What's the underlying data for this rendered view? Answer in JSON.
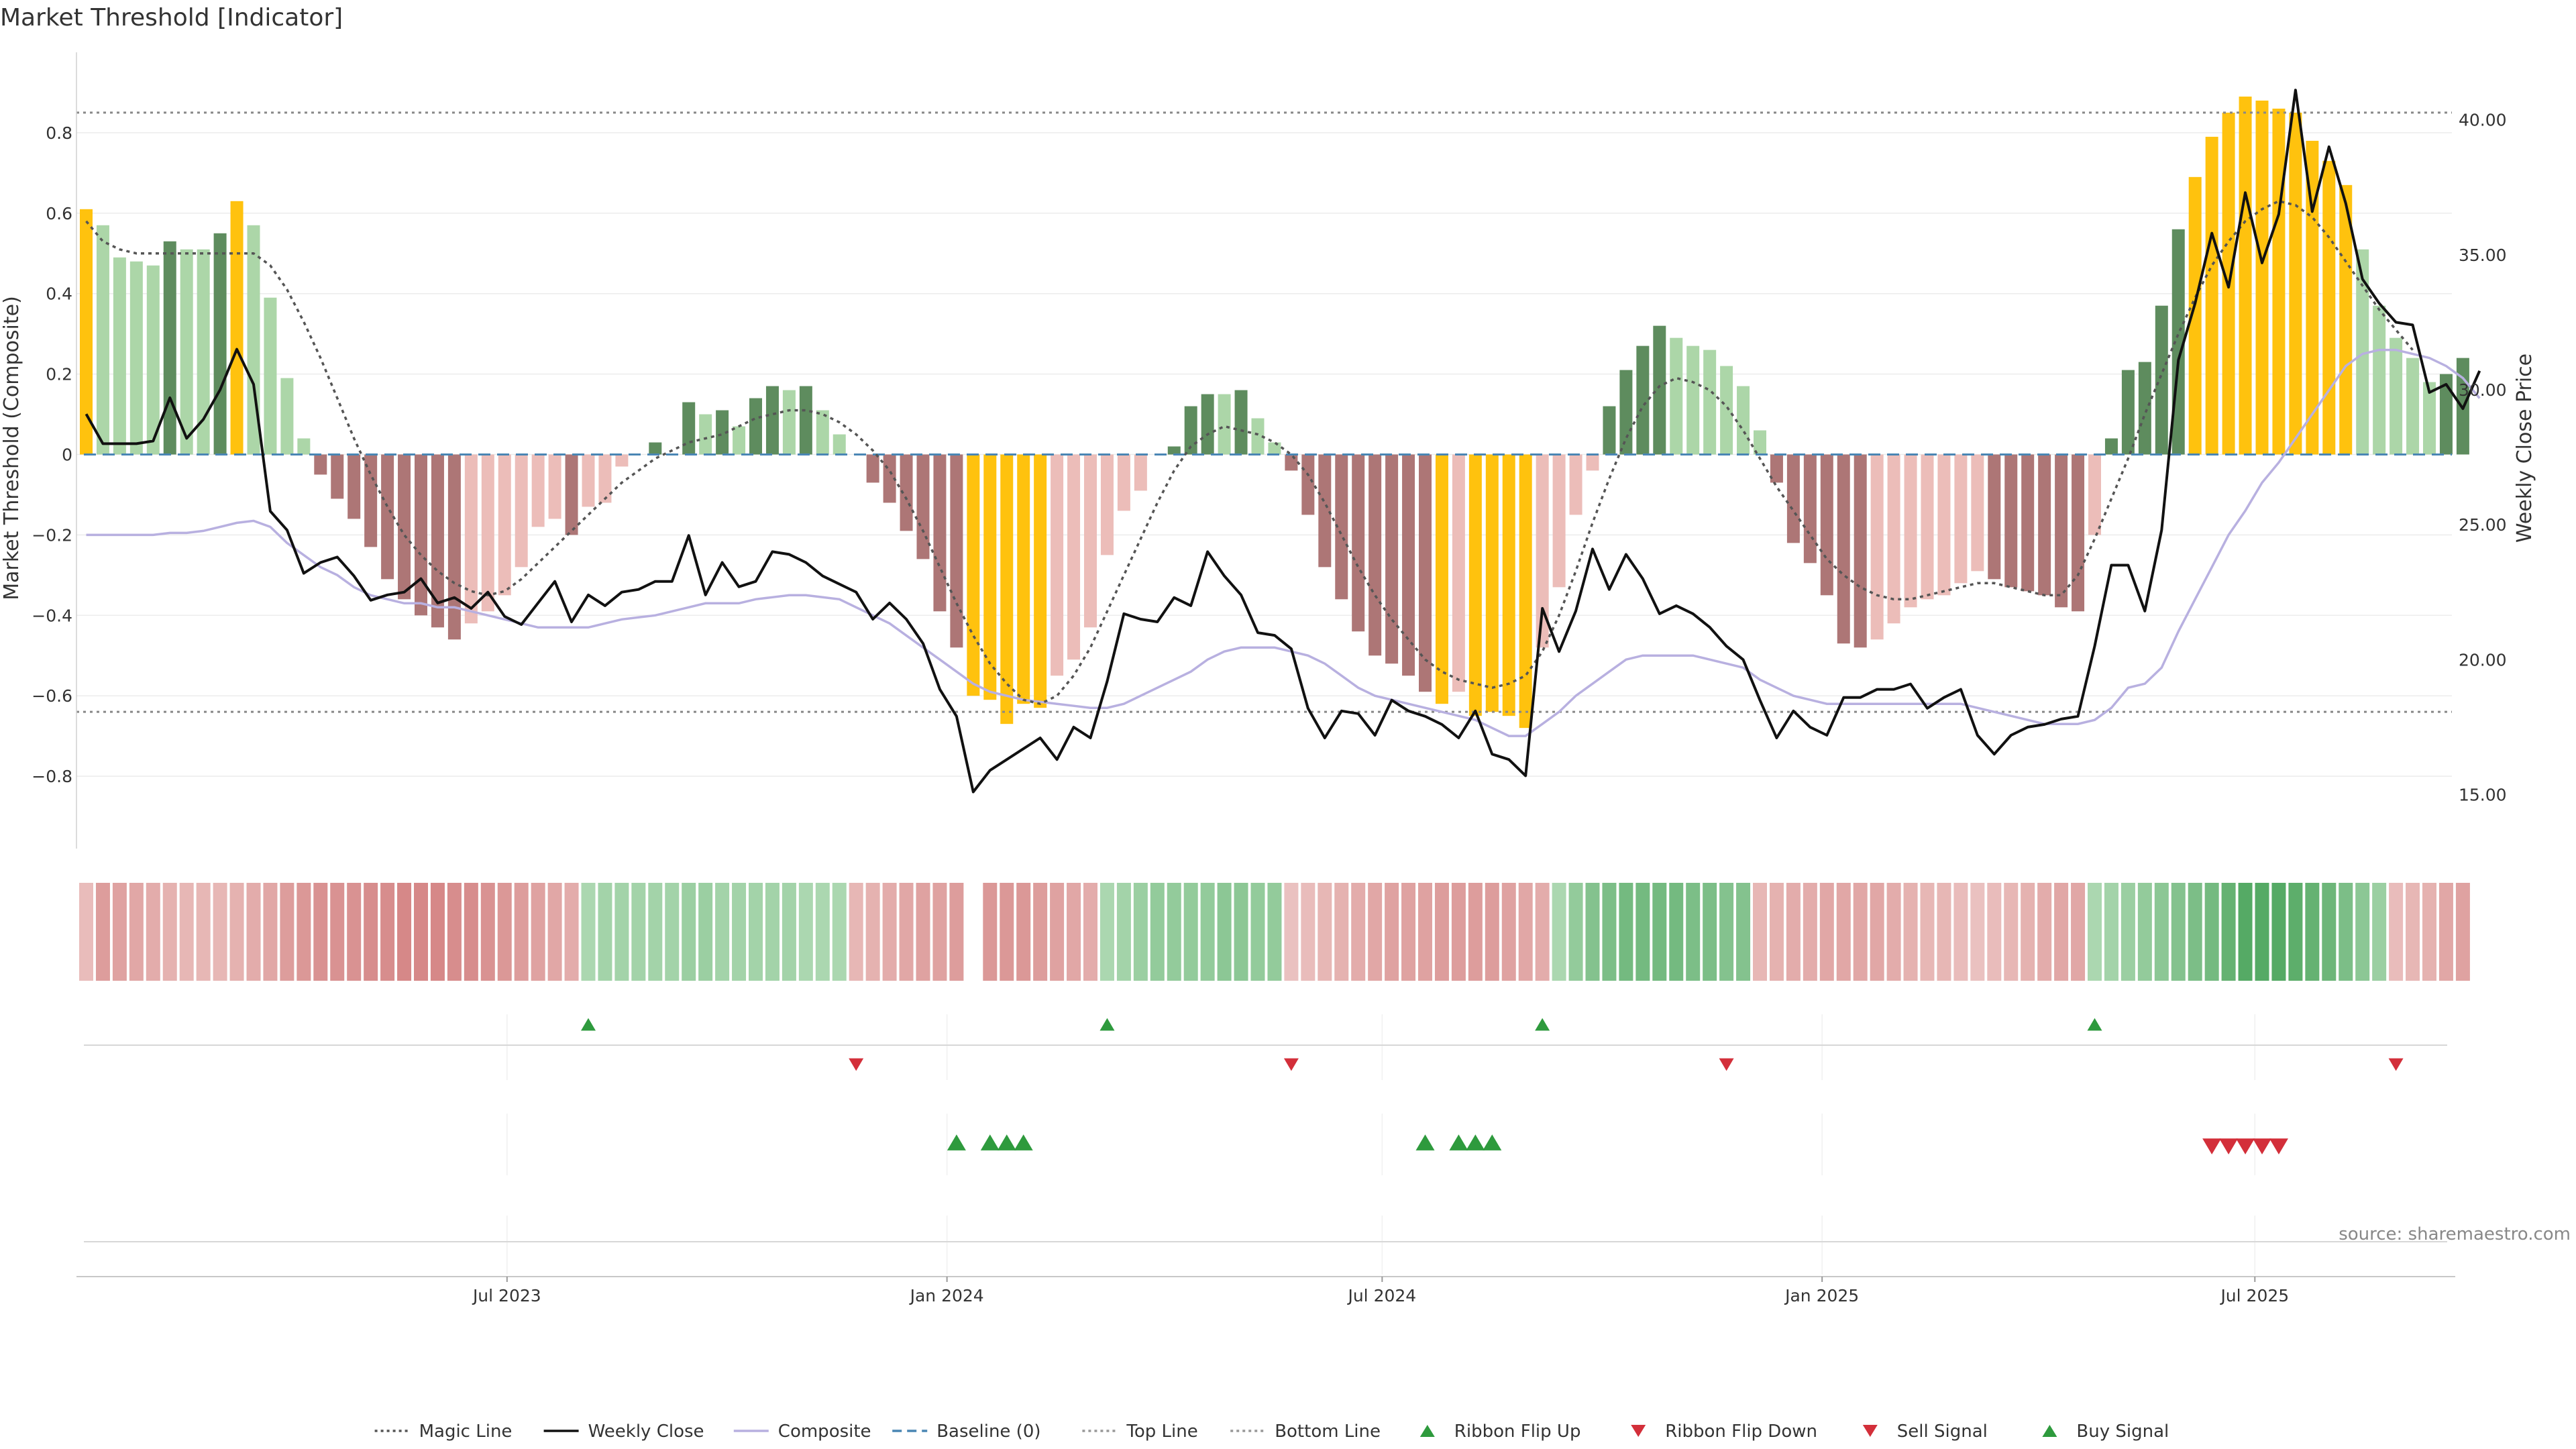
{
  "title": "Market Threshold [Indicator]",
  "source": "source: sharemaestro.com",
  "chart_data": {
    "type": "bar",
    "title": "Market Threshold [Indicator]",
    "ylabel": "Market Threshold (Composite)",
    "y2label": "Weekly Close Price",
    "ylim": [
      -0.98,
      1.0
    ],
    "y2lim": [
      13.0,
      42.5
    ],
    "y_ticks": [
      -0.8,
      -0.6,
      -0.4,
      -0.2,
      0,
      0.2,
      0.4,
      0.6,
      0.8
    ],
    "y_tick_labels": [
      "−0.8",
      "−0.6",
      "−0.4",
      "−0.2",
      "0",
      "0.2",
      "0.4",
      "0.6",
      "0.8"
    ],
    "y2_ticks": [
      15,
      20,
      25,
      30,
      35,
      40
    ],
    "y2_tick_labels": [
      "15.00",
      "20.00",
      "25.00",
      "30.00",
      "35.00",
      "40.00"
    ],
    "x_start": "2023-01-06",
    "x_tick_dates": [
      "2023-07-01",
      "2024-01-01",
      "2024-07-01",
      "2025-01-01",
      "2025-07-01"
    ],
    "x_tick_labels": [
      "Jul 2023",
      "Jan 2024",
      "Jul 2024",
      "Jan 2025",
      "Jul 2025"
    ],
    "top_line": 0.85,
    "bottom_line": -0.64,
    "grid": true,
    "legend_position": "bottom-center",
    "colors": {
      "pos_strong": "#5e8c5e",
      "pos_light": "#acd6a8",
      "neg_strong": "#ad7676",
      "neg_light": "#ecbdb9",
      "extreme": "#ffc20e",
      "close": "#111111",
      "composite": "#b8b0e0",
      "magic": "#555555",
      "baseline": "#4a86b4",
      "threshold": "#888888",
      "ribbon_up": "#2e9a3d",
      "ribbon_down": "#d32f3a"
    },
    "series": [
      {
        "name": "Market Threshold",
        "type": "bar",
        "values": [
          0.61,
          0.57,
          0.49,
          0.48,
          0.47,
          0.53,
          0.51,
          0.51,
          0.55,
          0.63,
          0.57,
          0.39,
          0.19,
          0.04,
          -0.05,
          -0.11,
          -0.16,
          -0.23,
          -0.31,
          -0.36,
          -0.4,
          -0.43,
          -0.46,
          -0.42,
          -0.39,
          -0.35,
          -0.28,
          -0.18,
          -0.16,
          -0.2,
          -0.13,
          -0.12,
          -0.03,
          0,
          0.03,
          0,
          0.13,
          0.1,
          0.11,
          0.07,
          0.14,
          0.17,
          0.16,
          0.17,
          0.11,
          0.05,
          0,
          -0.07,
          -0.12,
          -0.19,
          -0.26,
          -0.39,
          -0.48,
          -0.6,
          -0.61,
          -0.67,
          -0.62,
          -0.63,
          -0.55,
          -0.51,
          -0.43,
          -0.25,
          -0.14,
          -0.09,
          0,
          0.02,
          0.12,
          0.15,
          0.15,
          0.16,
          0.09,
          0.03,
          -0.04,
          -0.15,
          -0.28,
          -0.36,
          -0.44,
          -0.5,
          -0.52,
          -0.55,
          -0.59,
          -0.62,
          -0.59,
          -0.65,
          -0.64,
          -0.65,
          -0.68,
          -0.48,
          -0.33,
          -0.15,
          -0.04,
          0.12,
          0.21,
          0.27,
          0.32,
          0.29,
          0.27,
          0.26,
          0.22,
          0.17,
          0.06,
          -0.07,
          -0.22,
          -0.27,
          -0.35,
          -0.47,
          -0.48,
          -0.46,
          -0.42,
          -0.38,
          -0.36,
          -0.35,
          -0.32,
          -0.29,
          -0.31,
          -0.33,
          -0.34,
          -0.35,
          -0.38,
          -0.39,
          -0.2,
          0.04,
          0.21,
          0.23,
          0.37,
          0.56,
          0.69,
          0.79,
          0.85,
          0.89,
          0.88,
          0.86,
          0.85,
          0.78,
          0.73,
          0.67,
          0.51,
          0.37,
          0.29,
          0.24,
          0.18,
          0.2,
          0.24
        ]
      },
      {
        "name": "Weekly Close",
        "type": "line",
        "values": [
          29.1,
          28.0,
          28.0,
          28.0,
          28.1,
          29.7,
          28.2,
          28.9,
          30.0,
          31.5,
          30.2,
          25.5,
          24.8,
          23.2,
          23.6,
          23.8,
          23.1,
          22.2,
          22.4,
          22.5,
          23.0,
          22.1,
          22.3,
          21.9,
          22.5,
          21.6,
          21.3,
          22.1,
          22.9,
          21.4,
          22.4,
          22.0,
          22.5,
          22.6,
          22.9,
          22.9,
          24.6,
          22.4,
          23.6,
          22.7,
          22.9,
          24.0,
          23.9,
          23.6,
          23.1,
          22.8,
          22.5,
          21.5,
          22.1,
          21.5,
          20.6,
          18.9,
          17.9,
          15.1,
          15.9,
          16.3,
          16.7,
          17.1,
          16.3,
          17.5,
          17.1,
          19.2,
          21.7,
          21.5,
          21.4,
          22.3,
          22.0,
          24.0,
          23.1,
          22.4,
          21.0,
          20.9,
          20.4,
          18.2,
          17.1,
          18.1,
          18.0,
          17.2,
          18.5,
          18.1,
          17.9,
          17.6,
          17.1,
          18.1,
          16.5,
          16.3,
          15.7,
          21.9,
          20.3,
          21.8,
          24.1,
          22.6,
          23.9,
          23.0,
          21.7,
          22.0,
          21.7,
          21.2,
          20.5,
          20.0,
          18.5,
          17.1,
          18.1,
          17.5,
          17.2,
          18.6,
          18.6,
          18.9,
          18.9,
          19.1,
          18.2,
          18.6,
          18.9,
          17.2,
          16.5,
          17.2,
          17.5,
          17.6,
          17.8,
          17.9,
          20.5,
          23.5,
          23.5,
          21.8,
          24.8,
          31.1,
          33.2,
          35.8,
          33.8,
          37.3,
          34.7,
          36.5,
          41.1,
          36.6,
          39.0,
          36.9,
          34.1,
          33.2,
          32.5,
          32.4,
          29.9,
          30.2,
          29.3,
          30.7
        ]
      },
      {
        "name": "Composite",
        "type": "line",
        "values": [
          -0.2,
          -0.2,
          -0.2,
          -0.2,
          -0.2,
          -0.195,
          -0.195,
          -0.19,
          -0.18,
          -0.17,
          -0.165,
          -0.18,
          -0.22,
          -0.25,
          -0.28,
          -0.3,
          -0.33,
          -0.35,
          -0.36,
          -0.37,
          -0.37,
          -0.38,
          -0.38,
          -0.39,
          -0.4,
          -0.41,
          -0.42,
          -0.43,
          -0.43,
          -0.43,
          -0.43,
          -0.42,
          -0.41,
          -0.405,
          -0.4,
          -0.39,
          -0.38,
          -0.37,
          -0.37,
          -0.37,
          -0.36,
          -0.355,
          -0.35,
          -0.35,
          -0.355,
          -0.36,
          -0.38,
          -0.4,
          -0.42,
          -0.45,
          -0.48,
          -0.51,
          -0.54,
          -0.57,
          -0.59,
          -0.6,
          -0.61,
          -0.615,
          -0.62,
          -0.625,
          -0.63,
          -0.63,
          -0.62,
          -0.6,
          -0.58,
          -0.56,
          -0.54,
          -0.51,
          -0.49,
          -0.48,
          -0.48,
          -0.48,
          -0.49,
          -0.5,
          -0.52,
          -0.55,
          -0.58,
          -0.6,
          -0.61,
          -0.62,
          -0.63,
          -0.64,
          -0.65,
          -0.66,
          -0.68,
          -0.7,
          -0.7,
          -0.67,
          -0.64,
          -0.6,
          -0.57,
          -0.54,
          -0.51,
          -0.5,
          -0.5,
          -0.5,
          -0.5,
          -0.51,
          -0.52,
          -0.53,
          -0.56,
          -0.58,
          -0.6,
          -0.61,
          -0.62,
          -0.62,
          -0.62,
          -0.62,
          -0.62,
          -0.62,
          -0.62,
          -0.62,
          -0.62,
          -0.63,
          -0.64,
          -0.65,
          -0.66,
          -0.67,
          -0.67,
          -0.67,
          -0.66,
          -0.63,
          -0.58,
          -0.57,
          -0.53,
          -0.44,
          -0.36,
          -0.28,
          -0.2,
          -0.14,
          -0.07,
          -0.02,
          0.04,
          0.1,
          0.16,
          0.22,
          0.25,
          0.26,
          0.26,
          0.25,
          0.24,
          0.22,
          0.19,
          0.14
        ]
      },
      {
        "name": "Magic Line",
        "type": "line",
        "values": [
          0.58,
          0.53,
          0.51,
          0.5,
          0.5,
          0.5,
          0.5,
          0.5,
          0.5,
          0.5,
          0.5,
          0.47,
          0.41,
          0.33,
          0.24,
          0.14,
          0.04,
          -0.05,
          -0.13,
          -0.2,
          -0.25,
          -0.29,
          -0.32,
          -0.34,
          -0.35,
          -0.34,
          -0.31,
          -0.27,
          -0.23,
          -0.19,
          -0.15,
          -0.11,
          -0.07,
          -0.04,
          -0.01,
          0.01,
          0.03,
          0.04,
          0.05,
          0.07,
          0.09,
          0.1,
          0.11,
          0.11,
          0.1,
          0.08,
          0.05,
          0.01,
          -0.04,
          -0.11,
          -0.19,
          -0.28,
          -0.37,
          -0.45,
          -0.52,
          -0.57,
          -0.61,
          -0.62,
          -0.6,
          -0.55,
          -0.48,
          -0.39,
          -0.3,
          -0.21,
          -0.12,
          -0.04,
          0.02,
          0.05,
          0.07,
          0.06,
          0.05,
          0.03,
          0,
          -0.05,
          -0.12,
          -0.2,
          -0.28,
          -0.35,
          -0.41,
          -0.46,
          -0.51,
          -0.54,
          -0.56,
          -0.57,
          -0.58,
          -0.57,
          -0.55,
          -0.49,
          -0.4,
          -0.29,
          -0.17,
          -0.06,
          0.04,
          0.12,
          0.17,
          0.19,
          0.18,
          0.16,
          0.12,
          0.06,
          -0.01,
          -0.08,
          -0.14,
          -0.2,
          -0.26,
          -0.3,
          -0.33,
          -0.35,
          -0.36,
          -0.36,
          -0.35,
          -0.34,
          -0.33,
          -0.32,
          -0.32,
          -0.33,
          -0.34,
          -0.35,
          -0.35,
          -0.3,
          -0.21,
          -0.11,
          -0.01,
          0.1,
          0.2,
          0.3,
          0.39,
          0.47,
          0.53,
          0.58,
          0.61,
          0.63,
          0.62,
          0.59,
          0.54,
          0.48,
          0.42,
          0.36,
          0.31,
          0.26
        ]
      }
    ],
    "ribbon": [
      -0.25,
      -0.55,
      -0.5,
      -0.45,
      -0.4,
      -0.35,
      -0.3,
      -0.3,
      -0.3,
      -0.35,
      -0.4,
      -0.45,
      -0.55,
      -0.6,
      -0.65,
      -0.65,
      -0.65,
      -0.7,
      -0.7,
      -0.75,
      -0.75,
      -0.75,
      -0.7,
      -0.7,
      -0.65,
      -0.6,
      -0.55,
      -0.5,
      -0.45,
      -0.4,
      0.3,
      0.35,
      0.35,
      0.35,
      0.35,
      0.35,
      0.4,
      0.4,
      0.35,
      0.35,
      0.35,
      0.35,
      0.35,
      0.3,
      0.3,
      0.3,
      -0.3,
      -0.35,
      -0.4,
      -0.45,
      -0.5,
      -0.5,
      -0.55,
      -0.55,
      -0.6,
      -0.6,
      -0.6,
      -0.55,
      -0.5,
      -0.45,
      -0.4,
      0.3,
      0.35,
      0.4,
      0.45,
      0.45,
      0.45,
      0.45,
      0.5,
      0.5,
      0.45,
      0.45,
      -0.2,
      -0.25,
      -0.3,
      -0.35,
      -0.4,
      -0.45,
      -0.5,
      -0.5,
      -0.5,
      -0.55,
      -0.55,
      -0.55,
      -0.55,
      -0.5,
      -0.45,
      -0.4,
      0.3,
      0.45,
      0.55,
      0.6,
      0.65,
      0.65,
      0.65,
      0.65,
      0.6,
      0.6,
      0.55,
      0.55,
      -0.3,
      -0.35,
      -0.4,
      -0.4,
      -0.45,
      -0.45,
      -0.45,
      -0.45,
      -0.4,
      -0.35,
      -0.3,
      -0.3,
      -0.25,
      -0.2,
      -0.25,
      -0.3,
      -0.35,
      -0.4,
      -0.45,
      -0.45,
      0.3,
      0.35,
      0.4,
      0.45,
      0.5,
      0.55,
      0.6,
      0.65,
      0.75,
      0.85,
      0.85,
      0.85,
      0.8,
      0.75,
      0.7,
      0.6,
      0.5,
      0.4,
      -0.25,
      -0.3,
      -0.35,
      -0.45,
      -0.5
    ],
    "ribbon_gaps": [
      53
    ],
    "ribbon_flip_up": [
      30,
      61,
      87,
      120
    ],
    "ribbon_flip_down": [
      46,
      72,
      98,
      138
    ],
    "buy_signals": [
      52,
      54,
      55,
      56,
      80,
      82,
      83,
      84
    ],
    "sell_signals": [
      127,
      128,
      129,
      130,
      131
    ]
  },
  "legend": [
    {
      "label": "Magic Line",
      "style": "dotted",
      "color": "#555555"
    },
    {
      "label": "Weekly Close",
      "style": "solid",
      "color": "#111111"
    },
    {
      "label": "Composite",
      "style": "solid",
      "color": "#b8b0e0"
    },
    {
      "label": "Baseline (0)",
      "style": "dashed",
      "color": "#4a86b4"
    },
    {
      "label": "Top Line",
      "style": "dotted",
      "color": "#999999"
    },
    {
      "label": "Bottom Line",
      "style": "dotted",
      "color": "#999999"
    },
    {
      "label": "Ribbon Flip Up",
      "style": "tri-up",
      "color": "#2e9a3d"
    },
    {
      "label": "Ribbon Flip Down",
      "style": "tri-down",
      "color": "#d32f3a"
    },
    {
      "label": "Sell Signal",
      "style": "tri-down",
      "color": "#d32f3a"
    },
    {
      "label": "Buy Signal",
      "style": "tri-up",
      "color": "#2e9a3d"
    }
  ]
}
